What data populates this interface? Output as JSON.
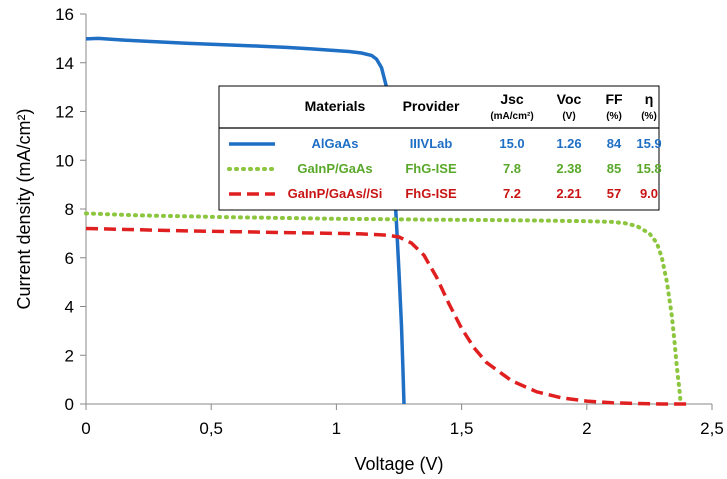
{
  "chart_data": {
    "type": "line",
    "title": "",
    "xlabel": "Voltage (V)",
    "ylabel": "Current density (mA/cm²)",
    "xlim": [
      0,
      2.5
    ],
    "ylim": [
      0,
      16
    ],
    "x_ticks": [
      "0",
      "0,5",
      "1",
      "1,5",
      "2",
      "2,5"
    ],
    "y_ticks": [
      "0",
      "2",
      "4",
      "6",
      "8",
      "10",
      "12",
      "14",
      "16"
    ],
    "grid": false,
    "legend_position": "right (table inset)",
    "series": [
      {
        "name": "AlGaAs",
        "color": "#1f6fc5",
        "style": "solid",
        "points": [
          [
            0,
            14.98
          ],
          [
            0.05,
            15.0
          ],
          [
            0.1,
            14.96
          ],
          [
            0.2,
            14.9
          ],
          [
            0.3,
            14.85
          ],
          [
            0.4,
            14.8
          ],
          [
            0.5,
            14.76
          ],
          [
            0.6,
            14.72
          ],
          [
            0.7,
            14.68
          ],
          [
            0.8,
            14.63
          ],
          [
            0.9,
            14.57
          ],
          [
            1.0,
            14.5
          ],
          [
            1.05,
            14.46
          ],
          [
            1.1,
            14.4
          ],
          [
            1.14,
            14.3
          ],
          [
            1.16,
            14.15
          ],
          [
            1.18,
            13.8
          ],
          [
            1.2,
            13.0
          ],
          [
            1.21,
            12.0
          ],
          [
            1.22,
            10.8
          ],
          [
            1.23,
            9.2
          ],
          [
            1.24,
            7.4
          ],
          [
            1.25,
            5.4
          ],
          [
            1.26,
            3.2
          ],
          [
            1.265,
            1.6
          ],
          [
            1.27,
            0.0
          ]
        ]
      },
      {
        "name": "GaInP/GaAs",
        "color": "#8cc63f",
        "style": "dotted",
        "points": [
          [
            0,
            7.82
          ],
          [
            0.2,
            7.74
          ],
          [
            0.4,
            7.7
          ],
          [
            0.6,
            7.66
          ],
          [
            0.8,
            7.63
          ],
          [
            1.0,
            7.6
          ],
          [
            1.2,
            7.58
          ],
          [
            1.4,
            7.56
          ],
          [
            1.6,
            7.55
          ],
          [
            1.8,
            7.53
          ],
          [
            2.0,
            7.5
          ],
          [
            2.1,
            7.47
          ],
          [
            2.15,
            7.42
          ],
          [
            2.2,
            7.3
          ],
          [
            2.25,
            7.0
          ],
          [
            2.28,
            6.6
          ],
          [
            2.3,
            6.0
          ],
          [
            2.32,
            5.0
          ],
          [
            2.34,
            3.6
          ],
          [
            2.35,
            2.6
          ],
          [
            2.36,
            1.5
          ],
          [
            2.37,
            0.6
          ],
          [
            2.375,
            0.0
          ]
        ]
      },
      {
        "name": "GaInP/GaAs//Si",
        "color": "#e02020",
        "style": "dashed",
        "points": [
          [
            0,
            7.2
          ],
          [
            0.2,
            7.15
          ],
          [
            0.4,
            7.1
          ],
          [
            0.6,
            7.07
          ],
          [
            0.8,
            7.03
          ],
          [
            1.0,
            7.0
          ],
          [
            1.1,
            6.98
          ],
          [
            1.2,
            6.93
          ],
          [
            1.25,
            6.85
          ],
          [
            1.3,
            6.6
          ],
          [
            1.35,
            6.1
          ],
          [
            1.4,
            5.2
          ],
          [
            1.45,
            4.1
          ],
          [
            1.5,
            3.1
          ],
          [
            1.55,
            2.3
          ],
          [
            1.6,
            1.7
          ],
          [
            1.7,
            0.95
          ],
          [
            1.8,
            0.5
          ],
          [
            1.9,
            0.25
          ],
          [
            2.0,
            0.12
          ],
          [
            2.1,
            0.05
          ],
          [
            2.2,
            0.02
          ],
          [
            2.3,
            0.0
          ],
          [
            2.4,
            0.0
          ]
        ]
      }
    ],
    "table": {
      "headers": [
        {
          "label": "Materials",
          "unit": ""
        },
        {
          "label": "Provider",
          "unit": ""
        },
        {
          "label": "Jsc",
          "unit": "(mA/cm²)"
        },
        {
          "label": "Voc",
          "unit": "(V)"
        },
        {
          "label": "FF",
          "unit": "(%)"
        },
        {
          "label": "η",
          "unit": "(%)"
        }
      ],
      "rows": [
        {
          "material": "AlGaAs",
          "provider": "IIIVLab",
          "jsc": "15.0",
          "voc": "1.26",
          "ff": "84",
          "eta": "15.9",
          "color": "#1f6fc5"
        },
        {
          "material": "GaInP/GaAs",
          "provider": "FhG-ISE",
          "jsc": "7.8",
          "voc": "2.38",
          "ff": "85",
          "eta": "15.8",
          "color": "#5aa82a"
        },
        {
          "material": "GaInP/GaAs//Si",
          "provider": "FhG-ISE",
          "jsc": "7.2",
          "voc": "2.21",
          "ff": "57",
          "eta": "9.0",
          "color": "#c81414"
        }
      ]
    }
  }
}
